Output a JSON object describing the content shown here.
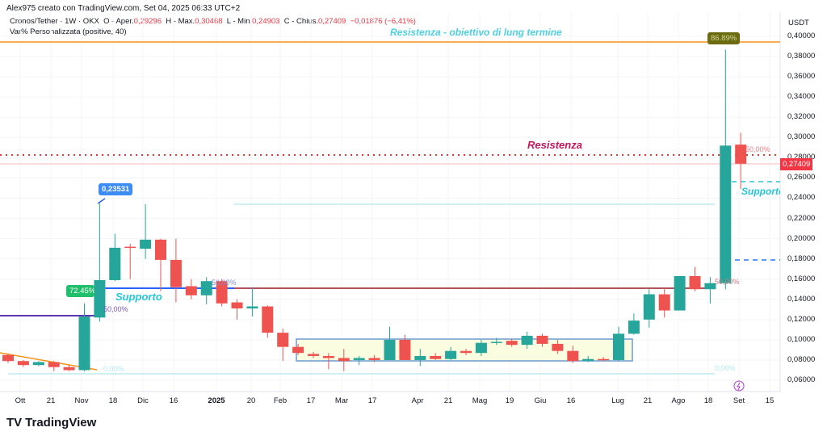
{
  "header": {
    "credit": "Alex975 creato con TradingView.com, Set 04, 2025 06:33 UTC+2",
    "symbol": "Cronos/Tether · 1W · OKX",
    "o_label": "O - Aper.",
    "o": "0,29296",
    "h_label": "H - Max.",
    "h": "0,30468",
    "l_label": "L - Min.",
    "l": "0,24903",
    "c_label": "C - Chius.",
    "c": "0,27409",
    "change": "−0,01876 (−6,41%)",
    "indicator": "Var% Personalizzata (positive, 40)"
  },
  "axis": {
    "currency": "USDT",
    "y_ticks": [
      "0,40000",
      "0,38000",
      "0,36000",
      "0,34000",
      "0,32000",
      "0,30000",
      "0,28000",
      "0,26000",
      "0,24000",
      "0,22000",
      "0,20000",
      "0,18000",
      "0,16000",
      "0,14000",
      "0,12000",
      "0,10000",
      "0,08000",
      "0,06000"
    ],
    "x_ticks": [
      "Ott",
      "21",
      "Nov",
      "18",
      "Dic",
      "16",
      "2025",
      "20",
      "Feb",
      "17",
      "Mar",
      "17",
      "Apr",
      "21",
      "Mag",
      "19",
      "Giu",
      "16",
      "Lug",
      "21",
      "Ago",
      "18",
      "Set",
      "15"
    ],
    "last_price": "0,27409"
  },
  "annotations": {
    "long_resistance": "Resistenza - obiettivo di lung termine",
    "resistance": "Resistenza",
    "support_left": "Supporto",
    "support_right": "Supporto",
    "callout_high": "0,23531",
    "callout_pct1": "72.45%",
    "callout_pct2": "86.89%",
    "fib_50_left": "50,00%",
    "fib_0_left": "0,00%",
    "fib_50_mid": "50,00%",
    "fib_50_right": "50,00%",
    "fib_0_right": "0,00%",
    "fib_50_top": "50,00%"
  },
  "colors": {
    "up": "#26a69a",
    "down": "#ef5350",
    "orange": "#f7931a",
    "resistance": "#c2185b",
    "support": "#26c6da"
  },
  "brand": "TradingView",
  "chart_data": {
    "type": "candlestick",
    "interval": "1W",
    "ylim": [
      0.05,
      0.41
    ],
    "ohlc": [
      [
        0.085,
        0.086,
        0.077,
        0.079
      ],
      [
        0.079,
        0.08,
        0.073,
        0.075
      ],
      [
        0.075,
        0.079,
        0.074,
        0.078
      ],
      [
        0.078,
        0.079,
        0.069,
        0.073
      ],
      [
        0.073,
        0.075,
        0.069,
        0.07
      ],
      [
        0.07,
        0.136,
        0.069,
        0.123
      ],
      [
        0.122,
        0.235,
        0.118,
        0.159
      ],
      [
        0.159,
        0.205,
        0.158,
        0.191
      ],
      [
        0.192,
        0.195,
        0.16,
        0.191
      ],
      [
        0.19,
        0.234,
        0.18,
        0.199
      ],
      [
        0.199,
        0.2,
        0.148,
        0.179
      ],
      [
        0.179,
        0.2,
        0.137,
        0.152
      ],
      [
        0.153,
        0.16,
        0.14,
        0.144
      ],
      [
        0.144,
        0.162,
        0.135,
        0.158
      ],
      [
        0.158,
        0.16,
        0.133,
        0.136
      ],
      [
        0.137,
        0.14,
        0.12,
        0.131
      ],
      [
        0.131,
        0.152,
        0.123,
        0.133
      ],
      [
        0.133,
        0.134,
        0.102,
        0.107
      ],
      [
        0.107,
        0.111,
        0.079,
        0.093
      ],
      [
        0.093,
        0.096,
        0.085,
        0.087
      ],
      [
        0.086,
        0.088,
        0.082,
        0.084
      ],
      [
        0.084,
        0.087,
        0.071,
        0.082
      ],
      [
        0.082,
        0.091,
        0.069,
        0.079
      ],
      [
        0.08,
        0.084,
        0.075,
        0.082
      ],
      [
        0.082,
        0.085,
        0.078,
        0.08
      ],
      [
        0.08,
        0.113,
        0.08,
        0.1
      ],
      [
        0.1,
        0.105,
        0.08,
        0.08
      ],
      [
        0.08,
        0.091,
        0.074,
        0.084
      ],
      [
        0.084,
        0.087,
        0.08,
        0.081
      ],
      [
        0.081,
        0.093,
        0.08,
        0.089
      ],
      [
        0.089,
        0.091,
        0.085,
        0.087
      ],
      [
        0.087,
        0.1,
        0.084,
        0.097
      ],
      [
        0.097,
        0.102,
        0.095,
        0.098
      ],
      [
        0.099,
        0.101,
        0.093,
        0.095
      ],
      [
        0.095,
        0.108,
        0.091,
        0.104
      ],
      [
        0.104,
        0.106,
        0.093,
        0.096
      ],
      [
        0.096,
        0.1,
        0.086,
        0.089
      ],
      [
        0.089,
        0.094,
        0.077,
        0.079
      ],
      [
        0.079,
        0.084,
        0.078,
        0.081
      ],
      [
        0.081,
        0.083,
        0.079,
        0.08
      ],
      [
        0.08,
        0.113,
        0.079,
        0.106
      ],
      [
        0.106,
        0.126,
        0.105,
        0.119
      ],
      [
        0.12,
        0.15,
        0.112,
        0.145
      ],
      [
        0.145,
        0.152,
        0.122,
        0.129
      ],
      [
        0.129,
        0.163,
        0.129,
        0.163
      ],
      [
        0.163,
        0.172,
        0.148,
        0.15
      ],
      [
        0.15,
        0.162,
        0.136,
        0.156
      ],
      [
        0.156,
        0.387,
        0.15,
        0.292
      ],
      [
        0.29296,
        0.30468,
        0.24903,
        0.27409
      ]
    ]
  }
}
